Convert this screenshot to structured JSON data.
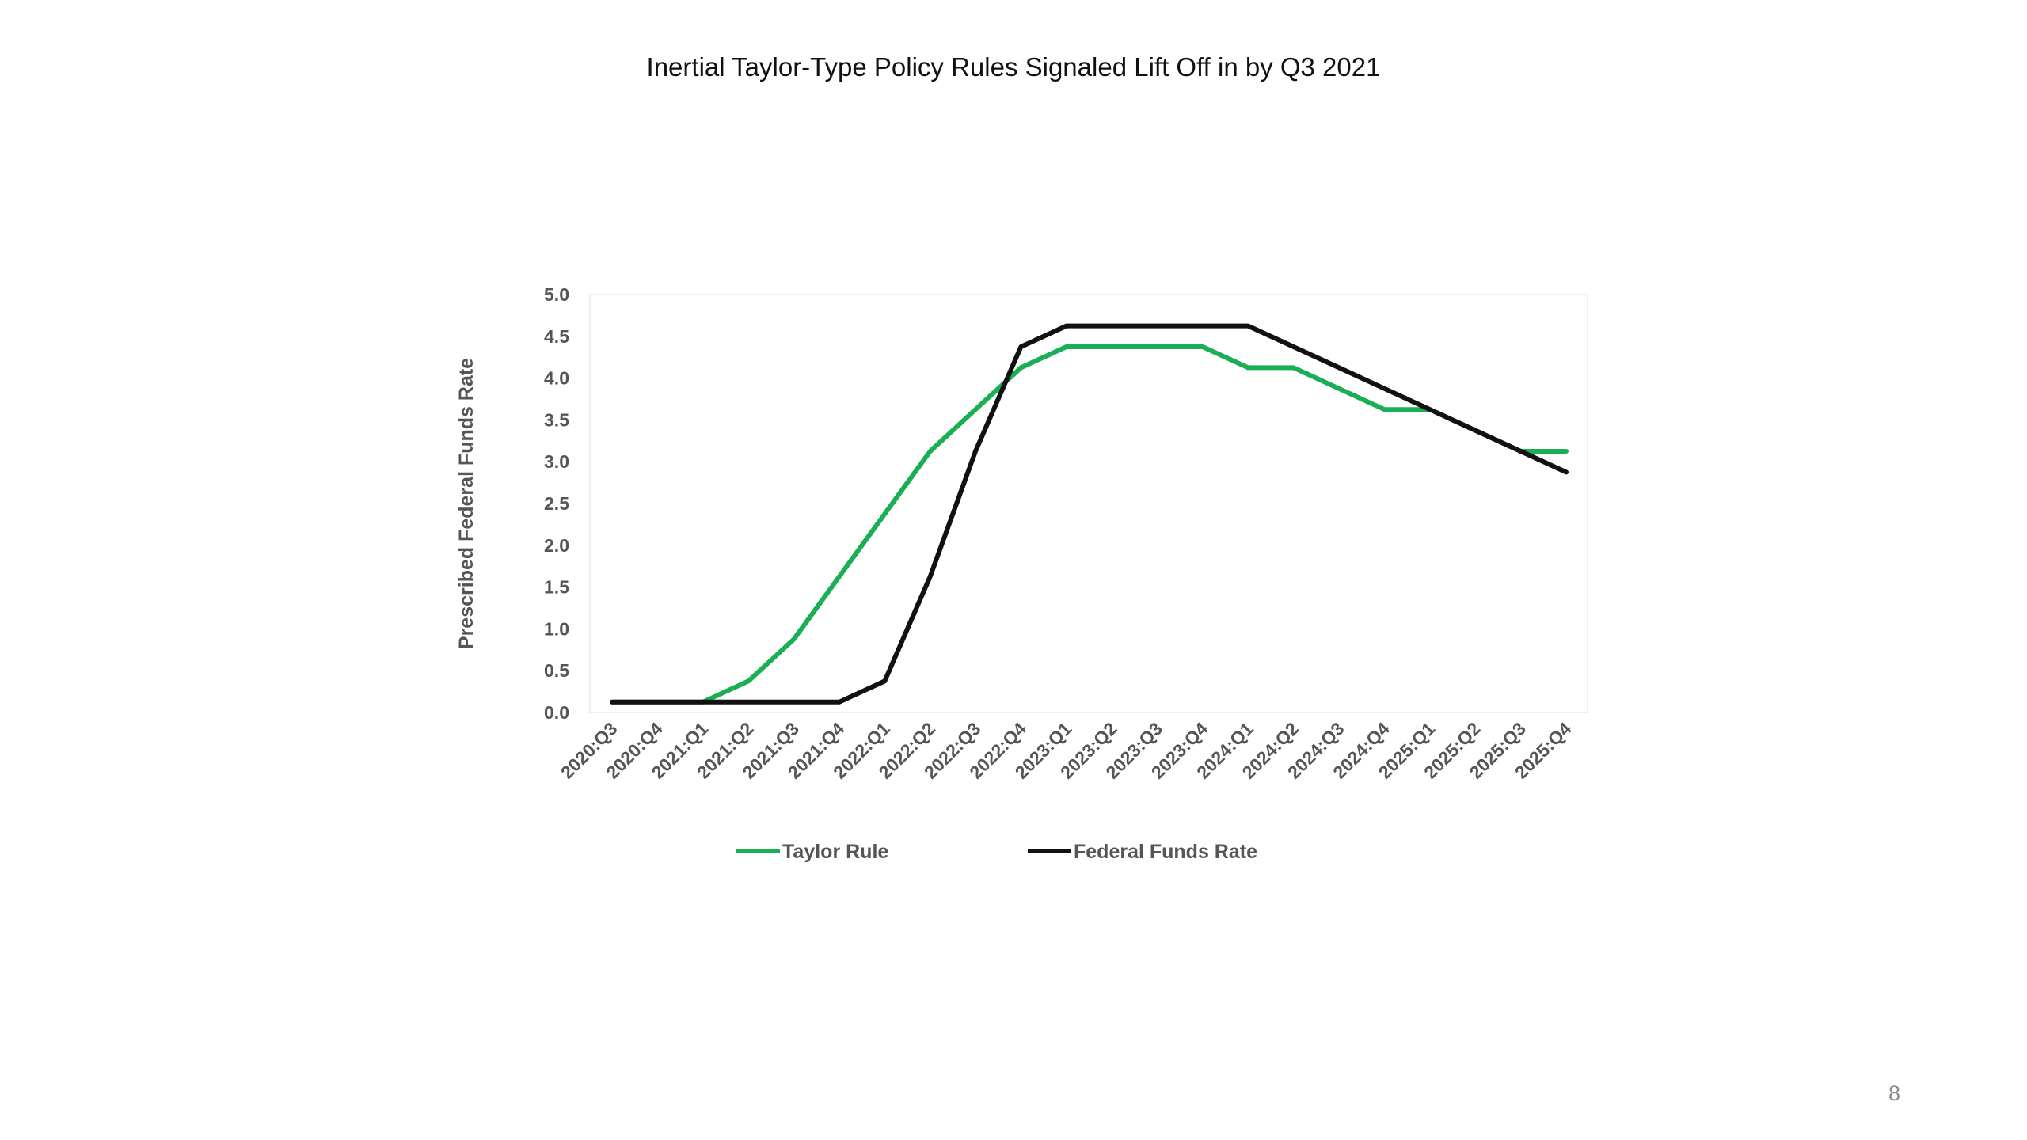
{
  "slide": {
    "title": "Inertial Taylor-Type Policy Rules Signaled Lift Off in by Q3 2021",
    "page_number": "8"
  },
  "chart_data": {
    "type": "line",
    "title": "",
    "ylabel": "Prescribed Federal Funds Rate",
    "xlabel": "",
    "ylim": [
      0,
      5
    ],
    "yticks": [
      "0.0",
      "0.5",
      "1.0",
      "1.5",
      "2.0",
      "2.5",
      "3.0",
      "3.5",
      "4.0",
      "4.5",
      "5.0"
    ],
    "categories": [
      "2020:Q3",
      "2020:Q4",
      "2021:Q1",
      "2021:Q2",
      "2021:Q3",
      "2021:Q4",
      "2022:Q1",
      "2022:Q2",
      "2022:Q3",
      "2022:Q4",
      "2023:Q1",
      "2023:Q2",
      "2023:Q3",
      "2023:Q4",
      "2024:Q1",
      "2024:Q2",
      "2024:Q3",
      "2024:Q4",
      "2025:Q1",
      "2025:Q2",
      "2025:Q3",
      "2025:Q4"
    ],
    "series": [
      {
        "name": "Taylor Rule",
        "color": "#1aaf54",
        "values": [
          0.125,
          0.125,
          0.125,
          0.375,
          0.875,
          1.625,
          2.375,
          3.125,
          3.625,
          4.125,
          4.375,
          4.375,
          4.375,
          4.375,
          4.125,
          4.125,
          3.875,
          3.625,
          3.625,
          3.375,
          3.125,
          3.125
        ]
      },
      {
        "name": "Federal Funds Rate",
        "color": "#111111",
        "values": [
          0.125,
          0.125,
          0.125,
          0.125,
          0.125,
          0.125,
          0.375,
          1.625,
          3.125,
          4.375,
          4.625,
          4.625,
          4.625,
          4.625,
          4.625,
          4.375,
          4.125,
          3.875,
          3.625,
          3.375,
          3.125,
          2.875
        ]
      }
    ],
    "grid": false,
    "legend_position": "bottom"
  }
}
